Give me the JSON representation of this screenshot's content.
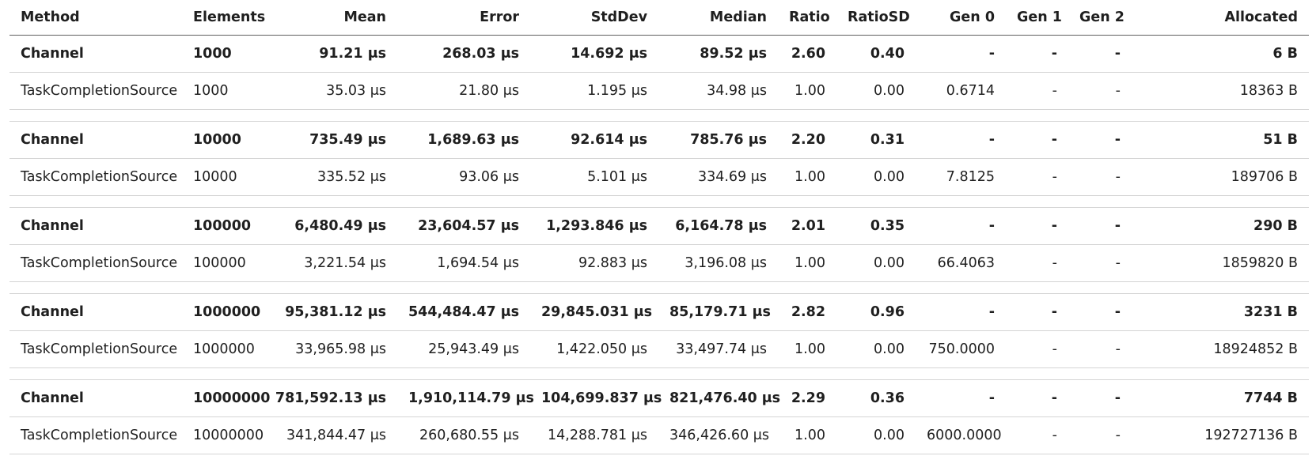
{
  "columns": [
    "Method",
    "Elements",
    "Mean",
    "Error",
    "StdDev",
    "Median",
    "Ratio",
    "RatioSD",
    "Gen 0",
    "Gen 1",
    "Gen 2",
    "Allocated"
  ],
  "rows": [
    [
      "Channel",
      "1000",
      "91.21 μs",
      "268.03 μs",
      "14.692 μs",
      "89.52 μs",
      "2.60",
      "0.40",
      "-",
      "-",
      "-",
      "6 B"
    ],
    [
      "TaskCompletionSource",
      "1000",
      "35.03 μs",
      "21.80 μs",
      "1.195 μs",
      "34.98 μs",
      "1.00",
      "0.00",
      "0.6714",
      "-",
      "-",
      "18363 B"
    ],
    [
      "Channel",
      "10000",
      "735.49 μs",
      "1,689.63 μs",
      "92.614 μs",
      "785.76 μs",
      "2.20",
      "0.31",
      "-",
      "-",
      "-",
      "51 B"
    ],
    [
      "TaskCompletionSource",
      "10000",
      "335.52 μs",
      "93.06 μs",
      "5.101 μs",
      "334.69 μs",
      "1.00",
      "0.00",
      "7.8125",
      "-",
      "-",
      "189706 B"
    ],
    [
      "Channel",
      "100000",
      "6,480.49 μs",
      "23,604.57 μs",
      "1,293.846 μs",
      "6,164.78 μs",
      "2.01",
      "0.35",
      "-",
      "-",
      "-",
      "290 B"
    ],
    [
      "TaskCompletionSource",
      "100000",
      "3,221.54 μs",
      "1,694.54 μs",
      "92.883 μs",
      "3,196.08 μs",
      "1.00",
      "0.00",
      "66.4063",
      "-",
      "-",
      "1859820 B"
    ],
    [
      "Channel",
      "1000000",
      "95,381.12 μs",
      "544,484.47 μs",
      "29,845.031 μs",
      "85,179.71 μs",
      "2.82",
      "0.96",
      "-",
      "-",
      "-",
      "3231 B"
    ],
    [
      "TaskCompletionSource",
      "1000000",
      "33,965.98 μs",
      "25,943.49 μs",
      "1,422.050 μs",
      "33,497.74 μs",
      "1.00",
      "0.00",
      "750.0000",
      "-",
      "-",
      "18924852 B"
    ],
    [
      "Channel",
      "10000000",
      "781,592.13 μs",
      "1,910,114.79 μs",
      "104,699.837 μs",
      "821,476.40 μs",
      "2.29",
      "0.36",
      "-",
      "-",
      "-",
      "7744 B"
    ],
    [
      "TaskCompletionSource",
      "10000000",
      "341,844.47 μs",
      "260,680.55 μs",
      "14,288.781 μs",
      "346,426.60 μs",
      "1.00",
      "0.00",
      "6000.0000",
      "-",
      "-",
      "192727136 B"
    ]
  ]
}
